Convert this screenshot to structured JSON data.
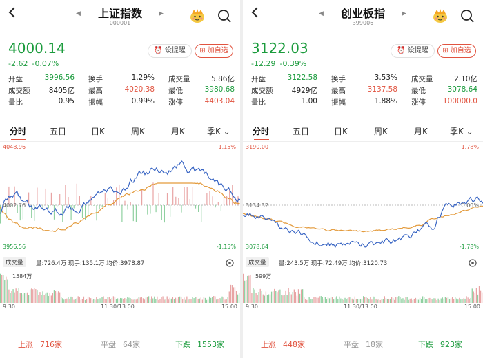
{
  "colors": {
    "up": "#e1533f",
    "down": "#1a9b3c",
    "flat": "#999999",
    "index_line": "#3a66c4",
    "avg_line": "#e39a3b"
  },
  "panels": [
    {
      "title": "上证指数",
      "code": "000001",
      "price": "4000.14",
      "change_abs": "-2.62",
      "change_pct": "-0.07%",
      "alert_label": "设提醒",
      "fav_label": "加自选",
      "stats": [
        [
          {
            "label": "开盘",
            "value": "3996.56",
            "color": "down"
          },
          {
            "label": "换手",
            "value": "1.29%",
            "color": "plain"
          },
          {
            "label": "成交量",
            "value": "5.86亿",
            "color": "plain"
          }
        ],
        [
          {
            "label": "成交额",
            "value": "8405亿",
            "color": "plain"
          },
          {
            "label": "最高",
            "value": "4020.38",
            "color": "up"
          },
          {
            "label": "最低",
            "value": "3980.68",
            "color": "down"
          }
        ],
        [
          {
            "label": "量比",
            "value": "0.95",
            "color": "plain"
          },
          {
            "label": "振幅",
            "value": "0.99%",
            "color": "plain"
          },
          {
            "label": "涨停",
            "value": "4403.04",
            "color": "up"
          }
        ]
      ],
      "tabs": [
        "分时",
        "五日",
        "日K",
        "周K",
        "月K",
        "季K"
      ],
      "chart_top": "4048.96",
      "chart_top_pct": "1.15%",
      "chart_mid": "4002.76",
      "chart_bottom": "3956.56",
      "chart_bottom_pct": "-1.15%",
      "vol_tag": "成交量",
      "vol_info": "量:726.4万 现手:135.1万 均价:3978.87",
      "vol_max": "1584万",
      "times": [
        "9:30",
        "11:30/13:00",
        "15:00"
      ],
      "rise_label": "上涨",
      "rise_count": "716家",
      "flat_label": "平盘",
      "flat_count": "64家",
      "fall_label": "下跌",
      "fall_count": "1553家"
    },
    {
      "title": "创业板指",
      "code": "399006",
      "price": "3122.03",
      "change_abs": "-12.29",
      "change_pct": "-0.39%",
      "alert_label": "设提醒",
      "fav_label": "加自选",
      "stats": [
        [
          {
            "label": "开盘",
            "value": "3122.58",
            "color": "down"
          },
          {
            "label": "换手",
            "value": "3.53%",
            "color": "plain"
          },
          {
            "label": "成交量",
            "value": "2.10亿",
            "color": "plain"
          }
        ],
        [
          {
            "label": "成交额",
            "value": "4929亿",
            "color": "plain"
          },
          {
            "label": "最高",
            "value": "3137.58",
            "color": "up"
          },
          {
            "label": "最低",
            "value": "3078.64",
            "color": "down"
          }
        ],
        [
          {
            "label": "量比",
            "value": "1.00",
            "color": "plain"
          },
          {
            "label": "振幅",
            "value": "1.88%",
            "color": "plain"
          },
          {
            "label": "涨停",
            "value": "100000.0",
            "color": "up"
          }
        ]
      ],
      "tabs": [
        "分时",
        "五日",
        "日K",
        "周K",
        "月K",
        "季K"
      ],
      "chart_top": "3190.00",
      "chart_top_pct": "1.78%",
      "chart_mid": "3134.32",
      "chart_mid_pct": "0.00%",
      "chart_bottom": "3078.64",
      "chart_bottom_pct": "-1.78%",
      "vol_tag": "成交量",
      "vol_info": "量:243.5万 现手:72.49万 均价:3120.73",
      "vol_max": "599万",
      "times": [
        "9:30",
        "11:30/13:00",
        "15:00"
      ],
      "rise_label": "上涨",
      "rise_count": "448家",
      "flat_label": "平盘",
      "flat_count": "18家",
      "fall_label": "下跌",
      "fall_count": "923家"
    }
  ]
}
